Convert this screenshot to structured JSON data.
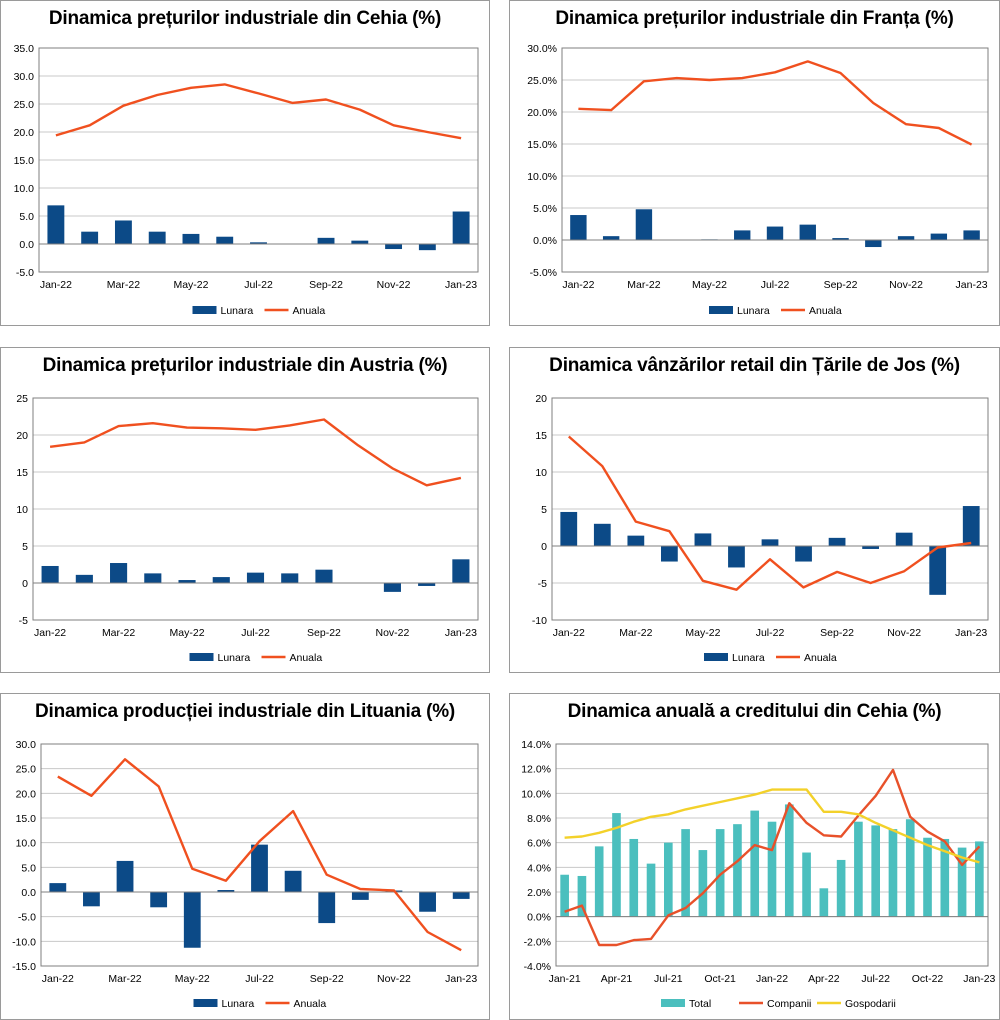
{
  "colors": {
    "lunara": "#0c4a87",
    "anuala": "#f0501f",
    "total": "#4bbfbe",
    "companii": "#e8512a",
    "gospodarii": "#f3d12a",
    "grid": "#c8c8c8",
    "axis": "#7f7f7f"
  },
  "chart_data": [
    {
      "type": "bar+line",
      "title": "Dinamica prețurilor industriale din Cehia (%)",
      "categories": [
        "Jan-22",
        "Feb-22",
        "Mar-22",
        "Apr-22",
        "May-22",
        "Jun-22",
        "Jul-22",
        "Aug-22",
        "Sep-22",
        "Oct-22",
        "Nov-22",
        "Dec-22",
        "Jan-23"
      ],
      "x_tick_labels": [
        "Jan-22",
        "Mar-22",
        "May-22",
        "Jul-22",
        "Sep-22",
        "Nov-22",
        "Jan-23"
      ],
      "y_tick_labels": [
        "35.0",
        "30.0",
        "25.0",
        "20.0",
        "15.0",
        "10.0",
        "5.0",
        "0.0",
        "-5.0"
      ],
      "ylim": [
        -5,
        35
      ],
      "y_step": 5,
      "series": [
        {
          "name": "Lunara",
          "kind": "bar",
          "values": [
            6.9,
            2.2,
            4.2,
            2.2,
            1.8,
            1.3,
            0.3,
            0.0,
            1.1,
            0.6,
            -0.9,
            -1.1,
            5.8
          ]
        },
        {
          "name": "Anuala",
          "kind": "line",
          "values": [
            19.4,
            21.2,
            24.7,
            26.6,
            27.9,
            28.5,
            26.9,
            25.2,
            25.8,
            24.0,
            21.2,
            20.0,
            18.9
          ]
        }
      ],
      "legend": [
        "Lunara",
        "Anuala"
      ]
    },
    {
      "type": "bar+line",
      "title": "Dinamica prețurilor industriale din Franța (%)",
      "categories": [
        "Jan-22",
        "Feb-22",
        "Mar-22",
        "Apr-22",
        "May-22",
        "Jun-22",
        "Jul-22",
        "Aug-22",
        "Sep-22",
        "Oct-22",
        "Nov-22",
        "Dec-22",
        "Jan-23"
      ],
      "x_tick_labels": [
        "Jan-22",
        "Mar-22",
        "May-22",
        "Jul-22",
        "Sep-22",
        "Nov-22",
        "Jan-23"
      ],
      "y_tick_labels": [
        "30.0%",
        "25.0%",
        "20.0%",
        "15.0%",
        "10.0%",
        "5.0%",
        "0.0%",
        "-5.0%"
      ],
      "ylim": [
        -5,
        30
      ],
      "y_step": 5,
      "series": [
        {
          "name": "Lunara",
          "kind": "bar",
          "values": [
            3.9,
            0.6,
            4.8,
            0.0,
            0.1,
            1.5,
            2.1,
            2.4,
            0.3,
            -1.1,
            0.6,
            1.0,
            1.5
          ]
        },
        {
          "name": "Anuala",
          "kind": "line",
          "values": [
            20.5,
            20.3,
            24.8,
            25.3,
            25.0,
            25.3,
            26.2,
            27.9,
            26.1,
            21.4,
            18.1,
            17.5,
            14.9
          ]
        }
      ],
      "legend": [
        "Lunara",
        "Anuala"
      ]
    },
    {
      "type": "bar+line",
      "title": "Dinamica prețurilor industriale din Austria (%)",
      "categories": [
        "Jan-22",
        "Feb-22",
        "Mar-22",
        "Apr-22",
        "May-22",
        "Jun-22",
        "Jul-22",
        "Aug-22",
        "Sep-22",
        "Oct-22",
        "Nov-22",
        "Dec-22",
        "Jan-23"
      ],
      "x_tick_labels": [
        "Jan-22",
        "Mar-22",
        "May-22",
        "Jul-22",
        "Sep-22",
        "Nov-22",
        "Jan-23"
      ],
      "y_tick_labels": [
        "25",
        "20",
        "15",
        "10",
        "5",
        "0",
        "-5"
      ],
      "ylim": [
        -5,
        25
      ],
      "y_step": 5,
      "series": [
        {
          "name": "Lunara",
          "kind": "bar",
          "values": [
            2.3,
            1.1,
            2.7,
            1.3,
            0.4,
            0.8,
            1.4,
            1.3,
            1.8,
            0.0,
            -1.2,
            -0.4,
            3.2
          ]
        },
        {
          "name": "Anuala",
          "kind": "line",
          "values": [
            18.4,
            19.0,
            21.2,
            21.6,
            21.0,
            20.9,
            20.7,
            21.3,
            22.1,
            18.6,
            15.5,
            13.2,
            14.2
          ]
        }
      ],
      "legend": [
        "Lunara",
        "Anuala"
      ]
    },
    {
      "type": "bar+line",
      "title": "Dinamica vânzărilor retail din Țările de Jos (%)",
      "categories": [
        "Jan-22",
        "Feb-22",
        "Mar-22",
        "Apr-22",
        "May-22",
        "Jun-22",
        "Jul-22",
        "Aug-22",
        "Sep-22",
        "Oct-22",
        "Nov-22",
        "Dec-22",
        "Jan-23"
      ],
      "x_tick_labels": [
        "Jan-22",
        "Mar-22",
        "May-22",
        "Jul-22",
        "Sep-22",
        "Nov-22",
        "Jan-23"
      ],
      "y_tick_labels": [
        "20",
        "15",
        "10",
        "5",
        "0",
        "-5",
        "-10"
      ],
      "ylim": [
        -10,
        20
      ],
      "y_step": 5,
      "series": [
        {
          "name": "Lunara",
          "kind": "bar",
          "values": [
            4.6,
            3.0,
            1.4,
            -2.1,
            1.7,
            -2.9,
            0.9,
            -2.1,
            1.1,
            -0.4,
            1.8,
            -6.6,
            5.4
          ]
        },
        {
          "name": "Anuala",
          "kind": "line",
          "values": [
            14.8,
            10.8,
            3.3,
            2.0,
            -4.7,
            -5.9,
            -1.8,
            -5.6,
            -3.5,
            -5.0,
            -3.4,
            -0.2,
            0.4
          ]
        }
      ],
      "legend": [
        "Lunara",
        "Anuala"
      ]
    },
    {
      "type": "bar+line",
      "title": "Dinamica producției industriale din Lituania (%)",
      "categories": [
        "Jan-22",
        "Feb-22",
        "Mar-22",
        "Apr-22",
        "May-22",
        "Jun-22",
        "Jul-22",
        "Aug-22",
        "Sep-22",
        "Oct-22",
        "Nov-22",
        "Dec-22",
        "Jan-23"
      ],
      "x_tick_labels": [
        "Jan-22",
        "Mar-22",
        "May-22",
        "Jul-22",
        "Sep-22",
        "Nov-22",
        "Jan-23"
      ],
      "y_tick_labels": [
        "30.0",
        "25.0",
        "20.0",
        "15.0",
        "10.0",
        "5.0",
        "0.0",
        "-5.0",
        "-10.0",
        "-15.0"
      ],
      "ylim": [
        -15,
        30
      ],
      "y_step": 5,
      "series": [
        {
          "name": "Lunara",
          "kind": "bar",
          "values": [
            1.8,
            -2.9,
            6.3,
            -3.1,
            -11.3,
            0.4,
            9.6,
            4.3,
            -6.3,
            -1.6,
            0.3,
            -4.0,
            -1.4
          ]
        },
        {
          "name": "Anuala",
          "kind": "line",
          "values": [
            23.4,
            19.5,
            26.9,
            21.4,
            4.7,
            2.3,
            10.3,
            16.4,
            3.5,
            0.6,
            0.3,
            -8.1,
            -11.8
          ]
        }
      ],
      "legend": [
        "Lunara",
        "Anuala"
      ]
    },
    {
      "type": "bar+line",
      "title": "Dinamica anuală a creditului din Cehia (%)",
      "categories": [
        "Jan-21",
        "Feb-21",
        "Mar-21",
        "Apr-21",
        "May-21",
        "Jun-21",
        "Jul-21",
        "Aug-21",
        "Sep-21",
        "Oct-21",
        "Nov-21",
        "Dec-21",
        "Jan-22",
        "Feb-22",
        "Mar-22",
        "Apr-22",
        "May-22",
        "Jun-22",
        "Jul-22",
        "Aug-22",
        "Sep-22",
        "Oct-22",
        "Nov-22",
        "Dec-22",
        "Jan-23"
      ],
      "x_tick_labels": [
        "Jan-21",
        "Apr-21",
        "Jul-21",
        "Oct-21",
        "Jan-22",
        "Apr-22",
        "Jul-22",
        "Oct-22",
        "Jan-23"
      ],
      "y_tick_labels": [
        "14.0%",
        "12.0%",
        "10.0%",
        "8.0%",
        "6.0%",
        "4.0%",
        "2.0%",
        "0.0%",
        "-2.0%",
        "-4.0%"
      ],
      "ylim": [
        -4,
        14
      ],
      "y_step": 2,
      "series": [
        {
          "name": "Total",
          "kind": "bar",
          "values": [
            3.4,
            3.3,
            5.7,
            8.4,
            6.3,
            4.3,
            6.0,
            7.1,
            5.4,
            7.1,
            7.5,
            8.6,
            7.7,
            9.1,
            5.2,
            2.3,
            4.6,
            7.7,
            7.4,
            7.1,
            7.9,
            6.4,
            6.3,
            5.6,
            6.1
          ]
        },
        {
          "name": "Companii",
          "kind": "line",
          "values": [
            0.4,
            0.9,
            -2.3,
            -2.3,
            -1.9,
            -1.8,
            0.1,
            0.7,
            1.9,
            3.4,
            4.5,
            5.8,
            5.4,
            9.2,
            7.6,
            6.6,
            6.5,
            8.2,
            9.8,
            11.9,
            8.1,
            6.9,
            6.1,
            4.2,
            5.7
          ]
        },
        {
          "name": "Gospodarii",
          "kind": "line",
          "values": [
            6.4,
            6.5,
            6.8,
            7.2,
            7.7,
            8.1,
            8.3,
            8.7,
            9.0,
            9.3,
            9.6,
            9.9,
            10.3,
            10.3,
            10.3,
            8.5,
            8.5,
            8.3,
            7.6,
            7.0,
            6.4,
            5.8,
            5.3,
            4.8,
            4.4
          ]
        }
      ],
      "legend": [
        "Total",
        "Companii",
        "Gospodarii"
      ]
    }
  ]
}
